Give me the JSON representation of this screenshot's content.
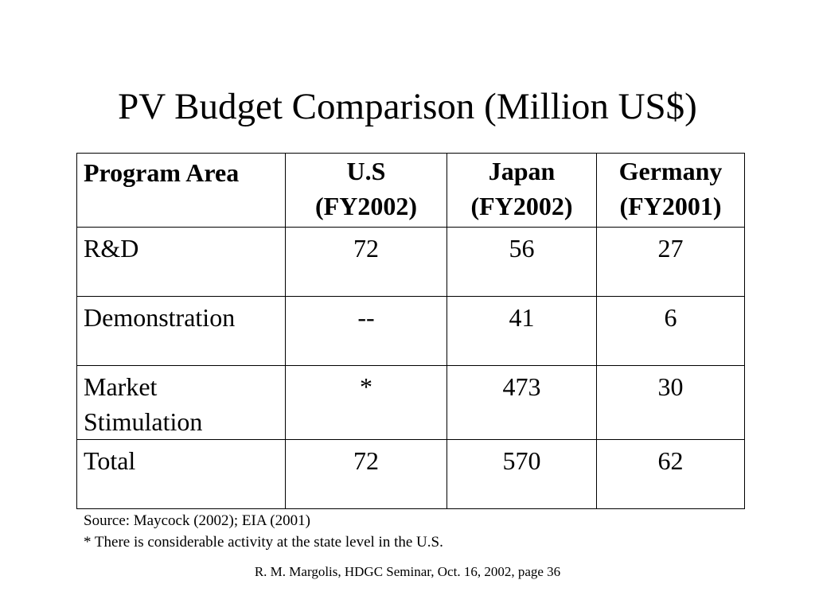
{
  "slide": {
    "title": "PV Budget Comparison (Million US$)"
  },
  "table": {
    "headers": [
      {
        "line1": "Program Area",
        "line2": ""
      },
      {
        "line1": "U.S",
        "line2": "(FY2002)"
      },
      {
        "line1": "Japan",
        "line2": "(FY2002)"
      },
      {
        "line1": "Germany",
        "line2": "(FY2001)"
      }
    ],
    "rows": [
      {
        "area_line1": "R&D",
        "area_line2": "",
        "us": "72",
        "japan": "56",
        "germany": "27"
      },
      {
        "area_line1": "Demonstration",
        "area_line2": "",
        "us": "--",
        "japan": "41",
        "germany": "6"
      },
      {
        "area_line1": "Market",
        "area_line2": "Stimulation",
        "us": "*",
        "japan": "473",
        "germany": "30"
      },
      {
        "area_line1": "Total",
        "area_line2": "",
        "us": "72",
        "japan": "570",
        "germany": "62"
      }
    ]
  },
  "notes": {
    "source": "Source:  Maycock (2002); EIA (2001)",
    "asterisk": "* There is considerable activity at the state level in the U.S."
  },
  "footer": {
    "citation": "R. M. Margolis, HDGC Seminar, Oct. 16, 2002, page 36"
  }
}
